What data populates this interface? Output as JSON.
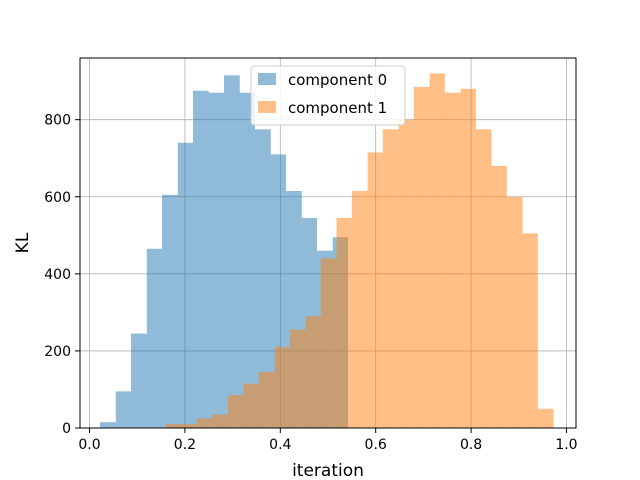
{
  "chart_data": {
    "type": "bar",
    "title": "",
    "xlabel": "iteration",
    "ylabel": "KL",
    "xlim": [
      -0.02,
      1.02
    ],
    "ylim": [
      0,
      960
    ],
    "xticks": [
      0.0,
      0.2,
      0.4,
      0.6,
      0.8,
      1.0
    ],
    "xtick_labels": [
      "0.0",
      "0.2",
      "0.4",
      "0.6",
      "0.8",
      "1.0"
    ],
    "yticks": [
      0,
      200,
      400,
      600,
      800
    ],
    "ytick_labels": [
      "0",
      "200",
      "400",
      "600",
      "800"
    ],
    "grid": true,
    "legend_position": "upper center",
    "series": [
      {
        "name": "component 0",
        "color": "#1f77b4",
        "alpha": 0.5,
        "bin_edges": [
          0.022,
          0.055,
          0.087,
          0.12,
          0.152,
          0.185,
          0.217,
          0.25,
          0.282,
          0.315,
          0.347,
          0.38,
          0.412,
          0.445,
          0.477,
          0.51,
          0.542
        ],
        "values": [
          15,
          95,
          245,
          465,
          605,
          740,
          875,
          870,
          915,
          870,
          775,
          710,
          615,
          545,
          460,
          495
        ]
      },
      {
        "name": "component 1",
        "color": "#ff7f0e",
        "alpha": 0.5,
        "bin_edges": [
          0.16,
          0.193,
          0.225,
          0.258,
          0.29,
          0.323,
          0.355,
          0.388,
          0.42,
          0.453,
          0.485,
          0.518,
          0.55,
          0.583,
          0.615,
          0.648,
          0.68,
          0.713,
          0.745,
          0.778,
          0.81,
          0.843,
          0.875,
          0.908,
          0.94,
          0.973
        ],
        "values": [
          10,
          10,
          25,
          35,
          85,
          115,
          145,
          210,
          255,
          290,
          440,
          545,
          615,
          715,
          775,
          800,
          885,
          920,
          870,
          880,
          775,
          680,
          600,
          505,
          50
        ]
      }
    ]
  }
}
